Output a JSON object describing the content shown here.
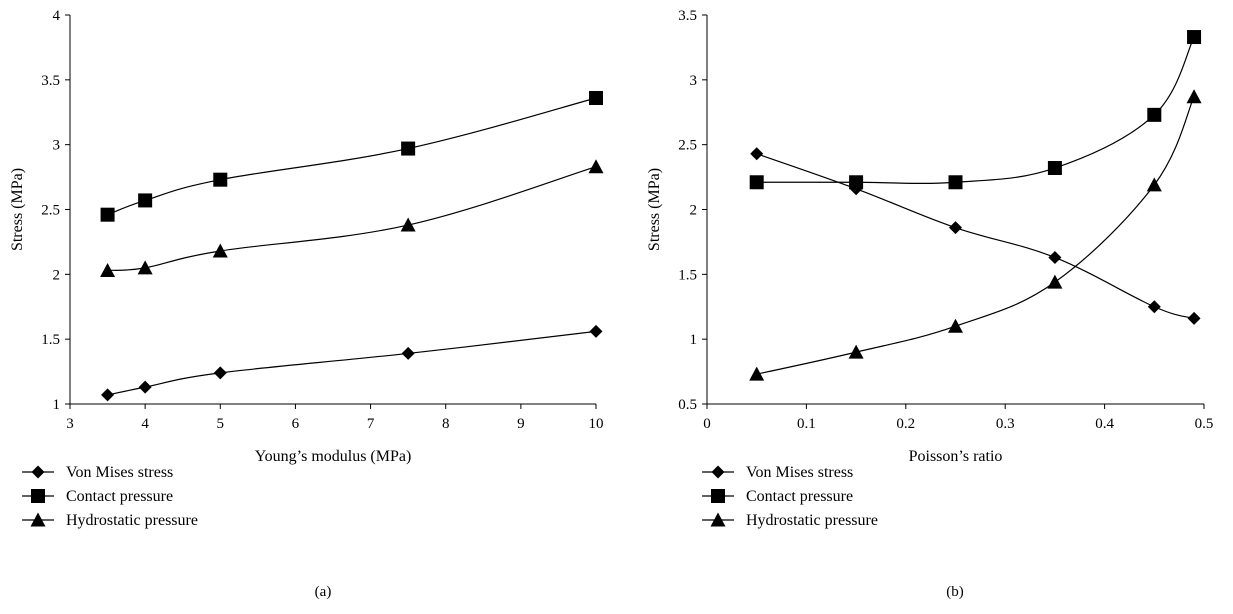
{
  "chart_data": [
    {
      "type": "line",
      "panel_label": "(a)",
      "xlabel": "Young’s modulus (MPa)",
      "ylabel": "Stress (MPa)",
      "xlim": [
        3,
        10
      ],
      "ylim": [
        1,
        4
      ],
      "xticks": [
        3,
        4,
        5,
        6,
        7,
        8,
        9,
        10
      ],
      "xtick_labels": [
        "3",
        "4",
        "5",
        "6",
        "7",
        "8",
        "9",
        "10"
      ],
      "yticks": [
        1,
        1.5,
        2,
        2.5,
        3,
        3.5,
        4
      ],
      "ytick_labels": [
        "1",
        "1.5",
        "2",
        "2.5",
        "3",
        "3.5",
        "4"
      ],
      "grid": false,
      "legend_position": "bottom-left",
      "x": [
        3.5,
        4,
        5,
        7.5,
        10
      ],
      "series": [
        {
          "name": "Von Mises stress",
          "marker": "diamond",
          "values": [
            1.07,
            1.13,
            1.24,
            1.39,
            1.56
          ]
        },
        {
          "name": "Contact pressure",
          "marker": "square",
          "values": [
            2.46,
            2.57,
            2.73,
            2.97,
            3.36
          ]
        },
        {
          "name": "Hydrostatic pressure",
          "marker": "triangle",
          "values": [
            2.03,
            2.05,
            2.18,
            2.38,
            2.83
          ]
        }
      ]
    },
    {
      "type": "line",
      "panel_label": "(b)",
      "xlabel": "Poisson’s ratio",
      "ylabel": "Stress (MPa)",
      "xlim": [
        0,
        0.5
      ],
      "ylim": [
        0.5,
        3.5
      ],
      "xticks": [
        0,
        0.1,
        0.2,
        0.3,
        0.4,
        0.5
      ],
      "xtick_labels": [
        "0",
        "0.1",
        "0.2",
        "0.3",
        "0.4",
        "0.5"
      ],
      "yticks": [
        0.5,
        1,
        1.5,
        2,
        2.5,
        3,
        3.5
      ],
      "ytick_labels": [
        "0.5",
        "1",
        "1.5",
        "2",
        "2.5",
        "3",
        "3.5"
      ],
      "grid": false,
      "legend_position": "bottom-left",
      "x": [
        0.05,
        0.15,
        0.25,
        0.35,
        0.45,
        0.49
      ],
      "series": [
        {
          "name": "Von Mises stress",
          "marker": "diamond",
          "values": [
            2.43,
            2.16,
            1.86,
            1.63,
            1.25,
            1.16
          ]
        },
        {
          "name": "Contact pressure",
          "marker": "square",
          "values": [
            2.21,
            2.21,
            2.21,
            2.32,
            2.73,
            3.33
          ]
        },
        {
          "name": "Hydrostatic pressure",
          "marker": "triangle",
          "values": [
            0.73,
            0.9,
            1.1,
            1.44,
            2.19,
            2.87
          ]
        }
      ]
    }
  ]
}
